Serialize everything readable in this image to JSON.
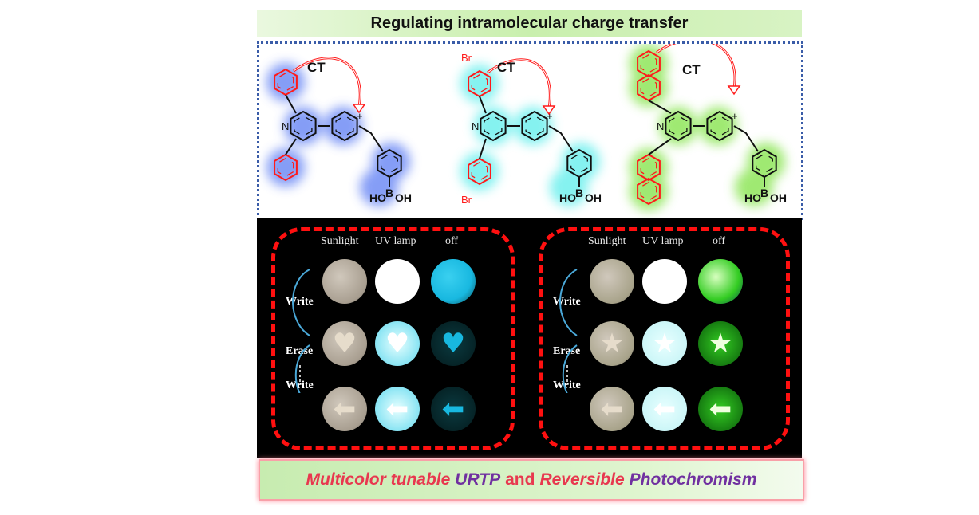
{
  "title": "Regulating intramolecular charge  transfer",
  "molecules": {
    "ct_label": "CT",
    "n_label": "N",
    "plus_label": "+",
    "br_label": "Br",
    "boronic": {
      "b": "B",
      "oh": "OH",
      "ho": "HO"
    },
    "glow_colors": [
      "#6f8cf5",
      "#6ff0ee",
      "#8fe65a"
    ],
    "donor_color": "#ff1a1a"
  },
  "photos": {
    "columns": [
      "Sunlight",
      "UV lamp",
      "off"
    ],
    "steps": [
      "Write",
      "Erase",
      "Write"
    ],
    "shapes": [
      "none",
      "heart",
      "arrow"
    ],
    "group1_shapes": [
      "none",
      "heart",
      "arrow"
    ],
    "group2_shapes": [
      "none",
      "star",
      "arrow"
    ],
    "afterglow_colors": [
      "#18b8e0",
      "#33cc22"
    ]
  },
  "banner": {
    "part1": "Multicolor tunable",
    "part2": "URTP",
    "part3": "and",
    "part4": "Reversible",
    "part5": "Photochromism",
    "color_red": "#e8384f",
    "color_purple": "#7030a0"
  }
}
